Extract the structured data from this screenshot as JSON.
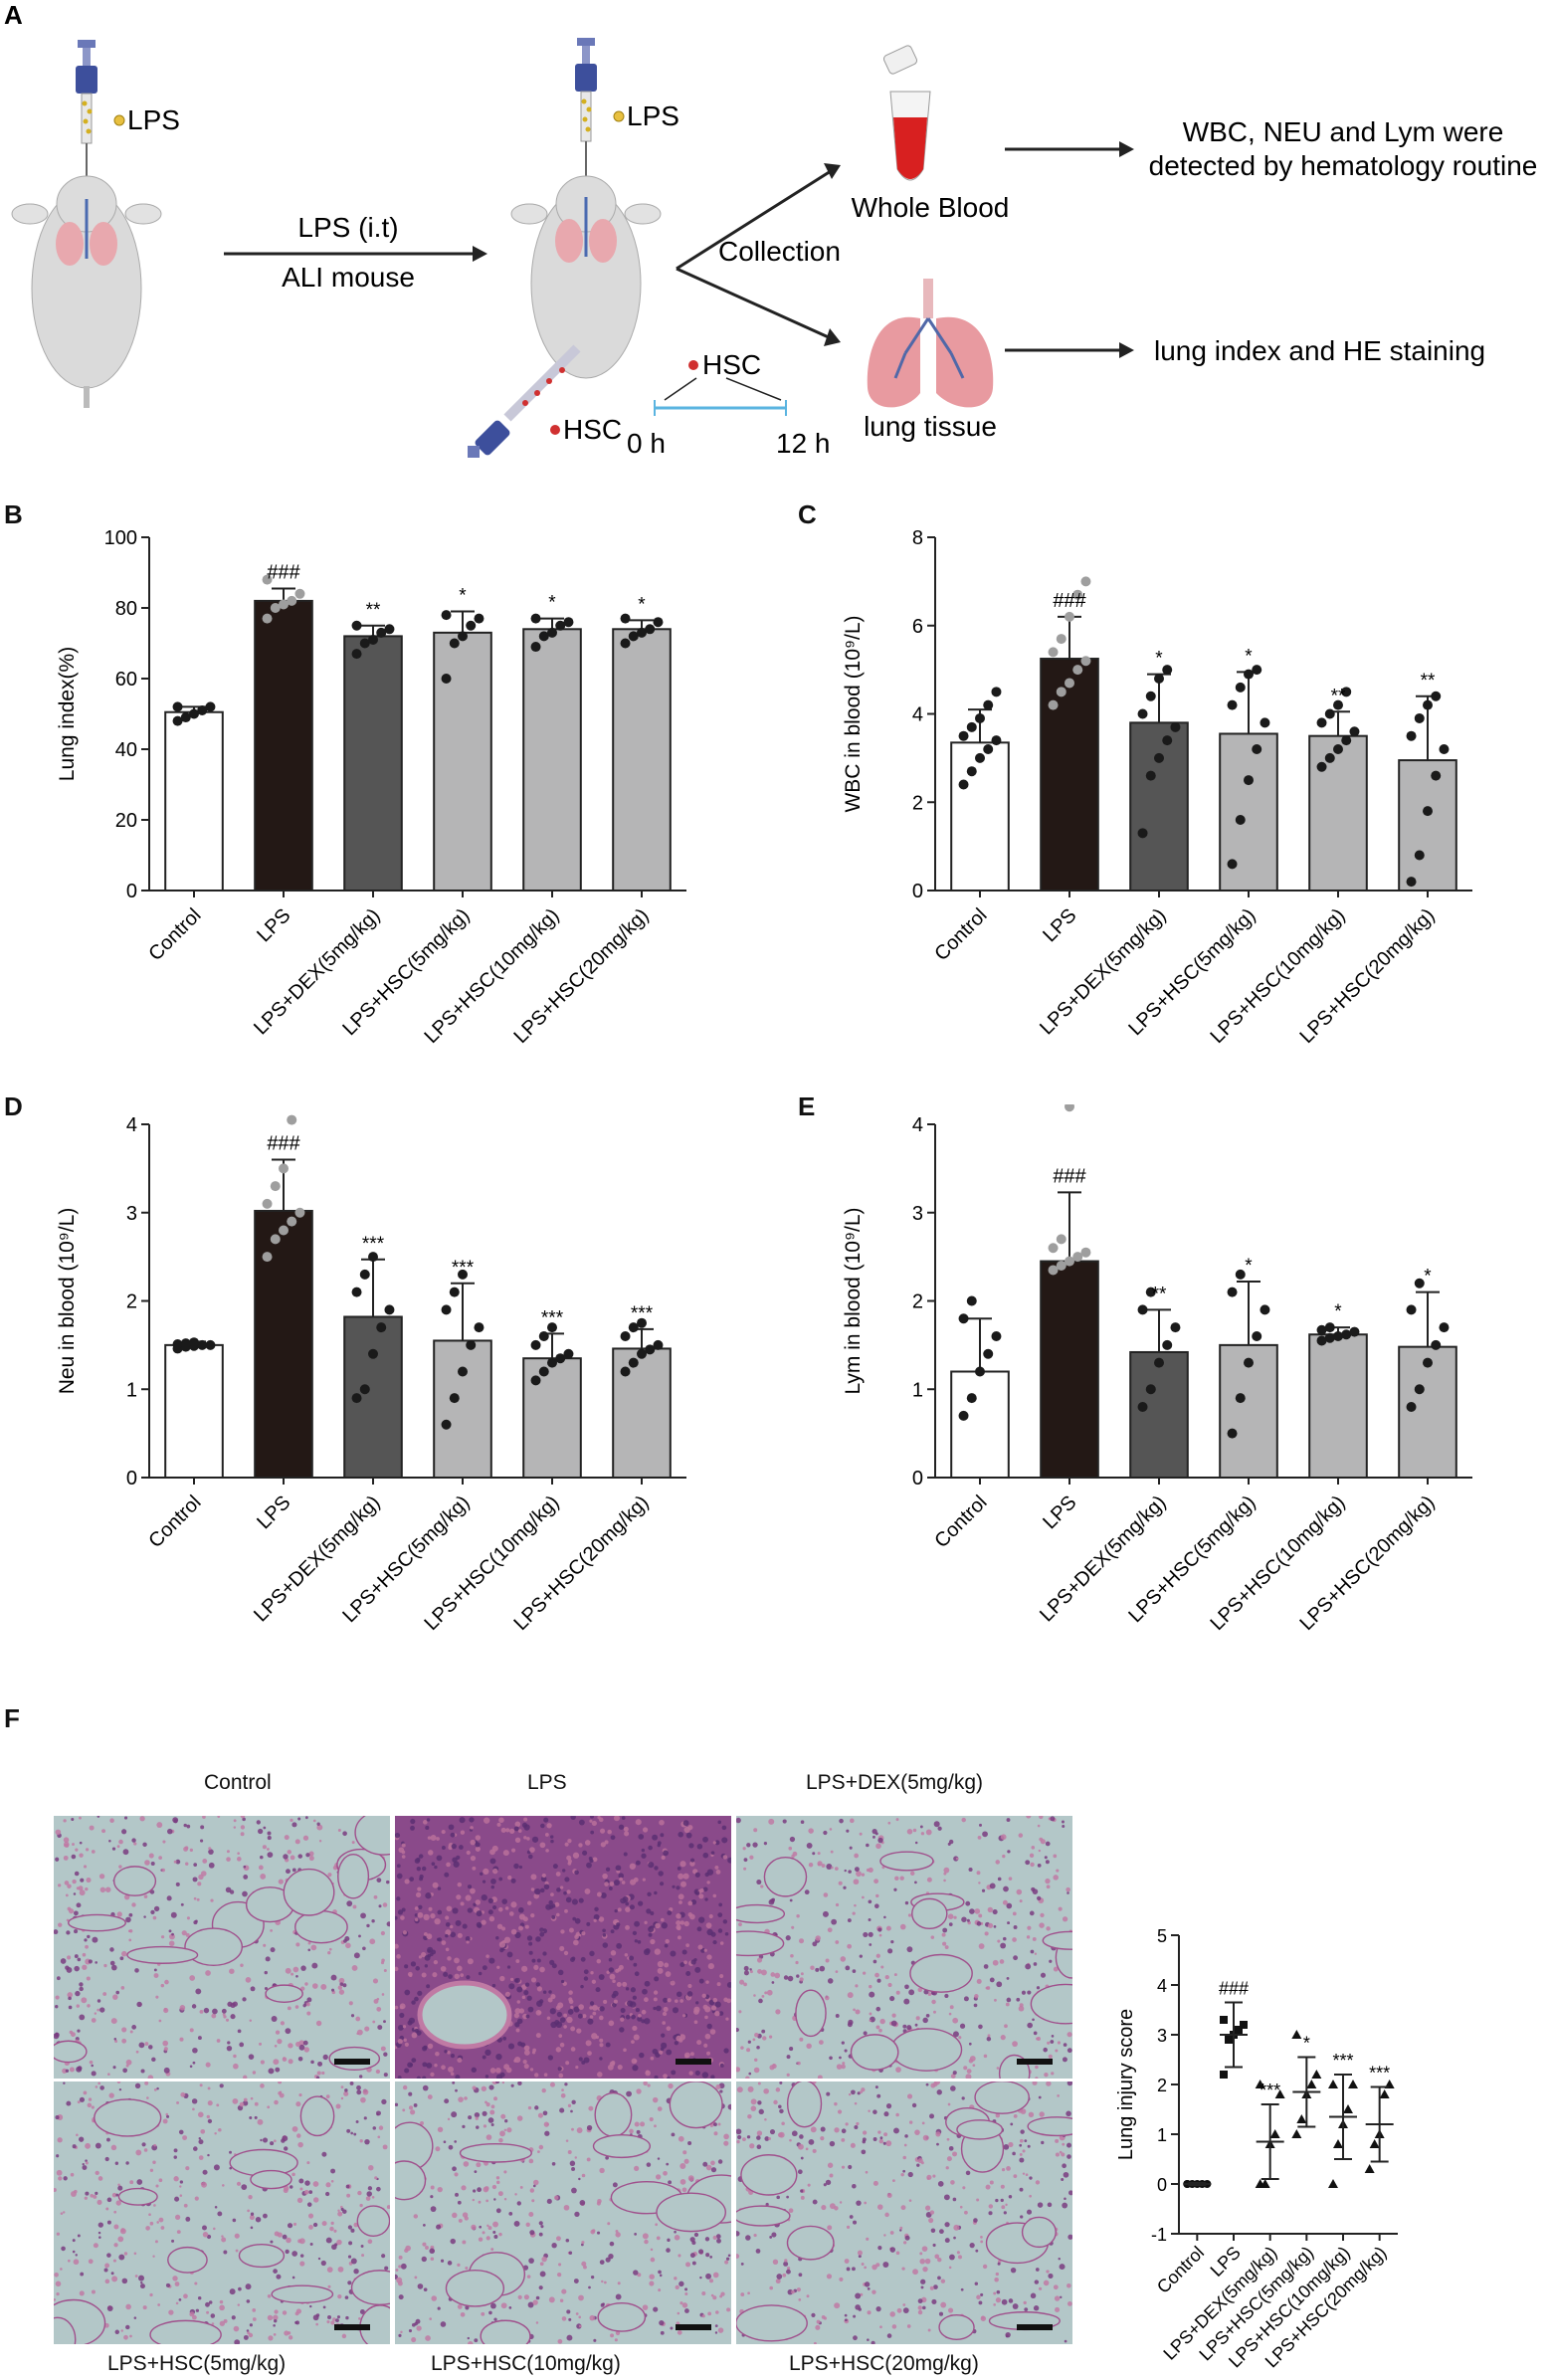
{
  "panels": {
    "a": "A",
    "b": "B",
    "c": "C",
    "d": "D",
    "e": "E",
    "f": "F"
  },
  "schematic": {
    "lps_label_1": "LPS",
    "lps_label_2": "LPS",
    "arrow_top": "LPS  (i.t)",
    "arrow_bottom": "ALI mouse",
    "collection": "Collection",
    "whole_blood": "Whole Blood",
    "lung_tissue": "lung tissue",
    "hsc_timeline": "HSC",
    "hsc_injection": "HSC",
    "time_start": "0 h",
    "time_end": "12 h",
    "result_blood_line1": "WBC, NEU and Lym were",
    "result_blood_line2": "detected by hematology routine",
    "result_lung": "lung index and HE staining"
  },
  "colors": {
    "control": "#ffffff",
    "lps": "#231815",
    "dex": "#555555",
    "hsc": "#b5b5b6",
    "lps_points": "#9e9e9e",
    "stain_bg": "#b3c7c8",
    "stain_tissue": "#a0508c",
    "timeline": "#5ab4e0"
  },
  "chart_data": [
    {
      "id": "B",
      "type": "bar",
      "categories": [
        "Control",
        "LPS",
        "LPS+DEX(5mg/kg)",
        "LPS+HSC(5mg/kg)",
        "LPS+HSC(10mg/kg)",
        "LPS+HSC(20mg/kg)"
      ],
      "values": [
        50.5,
        82,
        72,
        73,
        74,
        74
      ],
      "errors": [
        1.5,
        3.5,
        3,
        6,
        3,
        2.5
      ],
      "annotations": [
        "",
        "###",
        "**",
        "*",
        "*",
        "*"
      ],
      "points": [
        [
          48,
          49,
          50,
          51,
          52,
          52
        ],
        [
          77,
          80,
          81,
          82,
          84,
          88
        ],
        [
          67,
          70,
          71,
          73,
          74,
          75
        ],
        [
          60,
          70,
          72,
          75,
          77,
          78
        ],
        [
          69,
          72,
          73,
          75,
          76,
          77
        ],
        [
          70,
          72,
          73,
          74,
          76,
          77
        ]
      ],
      "ylabel": "Lung index(%)",
      "ylim": [
        0,
        100
      ],
      "yticks": [
        0,
        20,
        40,
        60,
        80,
        100
      ]
    },
    {
      "id": "C",
      "type": "bar",
      "categories": [
        "Control",
        "LPS",
        "LPS+DEX(5mg/kg)",
        "LPS+HSC(5mg/kg)",
        "LPS+HSC(10mg/kg)",
        "LPS+HSC(20mg/kg)"
      ],
      "values": [
        3.35,
        5.25,
        3.8,
        3.55,
        3.5,
        2.95
      ],
      "errors": [
        0.75,
        0.95,
        1.1,
        1.4,
        0.55,
        1.45
      ],
      "annotations": [
        "",
        "###",
        "*",
        "*",
        "**",
        "**"
      ],
      "points": [
        [
          2.4,
          2.7,
          3.0,
          3.2,
          3.4,
          3.5,
          3.7,
          3.9,
          4.2,
          4.5
        ],
        [
          4.2,
          4.5,
          4.7,
          5.0,
          5.2,
          5.4,
          5.7,
          6.2,
          6.7,
          7.0
        ],
        [
          1.3,
          2.6,
          3.0,
          3.4,
          3.7,
          4.0,
          4.4,
          4.8,
          5.0
        ],
        [
          0.6,
          1.6,
          2.5,
          3.2,
          3.8,
          4.2,
          4.6,
          4.9,
          5.0
        ],
        [
          2.8,
          3.0,
          3.2,
          3.4,
          3.6,
          3.8,
          4.0,
          4.2,
          4.5
        ],
        [
          0.2,
          0.8,
          1.8,
          2.6,
          3.2,
          3.5,
          3.9,
          4.2,
          4.4
        ]
      ],
      "ylabel": "WBC in blood (10⁹/L)",
      "ylim": [
        0,
        8
      ],
      "yticks": [
        0,
        2,
        4,
        6,
        8
      ]
    },
    {
      "id": "D",
      "type": "bar",
      "categories": [
        "Control",
        "LPS",
        "LPS+DEX(5mg/kg)",
        "LPS+HSC(5mg/kg)",
        "LPS+HSC(10mg/kg)",
        "LPS+HSC(20mg/kg)"
      ],
      "values": [
        1.5,
        3.02,
        1.82,
        1.55,
        1.35,
        1.46
      ],
      "errors": [
        0.04,
        0.58,
        0.65,
        0.65,
        0.28,
        0.22
      ],
      "annotations": [
        "",
        "###",
        "***",
        "***",
        "***",
        "***"
      ],
      "points": [
        [
          1.46,
          1.48,
          1.49,
          1.5,
          1.5,
          1.51,
          1.52,
          1.53
        ],
        [
          2.5,
          2.7,
          2.8,
          2.9,
          3.0,
          3.1,
          3.3,
          3.5,
          4.05
        ],
        [
          0.9,
          1.0,
          1.4,
          1.7,
          1.9,
          2.1,
          2.3,
          2.5
        ],
        [
          0.6,
          0.9,
          1.2,
          1.5,
          1.7,
          1.9,
          2.1,
          2.3
        ],
        [
          1.1,
          1.2,
          1.3,
          1.35,
          1.4,
          1.5,
          1.6,
          1.7
        ],
        [
          1.2,
          1.3,
          1.4,
          1.45,
          1.5,
          1.6,
          1.7,
          1.75
        ]
      ],
      "ylabel": "Neu in blood (10⁹/L)",
      "ylim": [
        0,
        4
      ],
      "yticks": [
        0,
        1,
        2,
        3,
        4
      ]
    },
    {
      "id": "E",
      "type": "bar",
      "categories": [
        "Control",
        "LPS",
        "LPS+DEX(5mg/kg)",
        "LPS+HSC(5mg/kg)",
        "LPS+HSC(10mg/kg)",
        "LPS+HSC(20mg/kg)"
      ],
      "values": [
        1.2,
        2.45,
        1.42,
        1.5,
        1.62,
        1.48
      ],
      "errors": [
        0.6,
        0.78,
        0.48,
        0.72,
        0.08,
        0.62
      ],
      "annotations": [
        "",
        "###",
        "**",
        "*",
        "*",
        "*"
      ],
      "points": [
        [
          0.7,
          0.9,
          1.2,
          1.4,
          1.6,
          1.8,
          2.0
        ],
        [
          2.35,
          2.4,
          2.45,
          2.5,
          2.55,
          2.6,
          2.7,
          4.2
        ],
        [
          0.8,
          1.0,
          1.3,
          1.5,
          1.7,
          1.9,
          2.1
        ],
        [
          0.5,
          0.9,
          1.3,
          1.6,
          1.9,
          2.1,
          2.3
        ],
        [
          1.55,
          1.58,
          1.6,
          1.62,
          1.65,
          1.67,
          1.7
        ],
        [
          0.8,
          1.0,
          1.3,
          1.5,
          1.7,
          1.9,
          2.2
        ]
      ],
      "ylabel": "Lym in blood (10⁹/L)",
      "ylim": [
        0,
        4
      ],
      "yticks": [
        0,
        1,
        2,
        3,
        4
      ]
    },
    {
      "id": "F-score",
      "type": "scatter",
      "categories": [
        "Control",
        "LPS",
        "LPS+DEX(5mg/kg)",
        "LPS+HSC(5mg/kg)",
        "LPS+HSC(10mg/kg)",
        "LPS+HSC(20mg/kg)"
      ],
      "values": [
        0,
        3.0,
        0.85,
        1.85,
        1.35,
        1.2
      ],
      "errors": [
        0.02,
        0.65,
        0.75,
        0.7,
        0.85,
        0.75
      ],
      "annotations": [
        "",
        "###",
        "***",
        "*",
        "***",
        "***"
      ],
      "points": [
        [
          0,
          0,
          0,
          0,
          0,
          0
        ],
        [
          2.2,
          2.9,
          3.0,
          3.1,
          3.2,
          3.3
        ],
        [
          0,
          0,
          0.8,
          1.0,
          1.8,
          2.0
        ],
        [
          1.0,
          1.3,
          1.8,
          2.0,
          2.2,
          3.0
        ],
        [
          0,
          0.8,
          1.2,
          1.5,
          2.0,
          2.0
        ],
        [
          0.3,
          0.8,
          1.0,
          1.8,
          2.0
        ]
      ],
      "ylabel": "Lung injury score",
      "ylim": [
        -1,
        5
      ],
      "yticks": [
        -1,
        0,
        1,
        2,
        3,
        4,
        5
      ]
    }
  ],
  "histology": {
    "top_labels": [
      "Control",
      "LPS",
      "LPS+DEX(5mg/kg)"
    ],
    "bottom_labels": [
      "LPS+HSC(5mg/kg)",
      "LPS+HSC(10mg/kg)",
      "LPS+HSC(20mg/kg)"
    ]
  }
}
